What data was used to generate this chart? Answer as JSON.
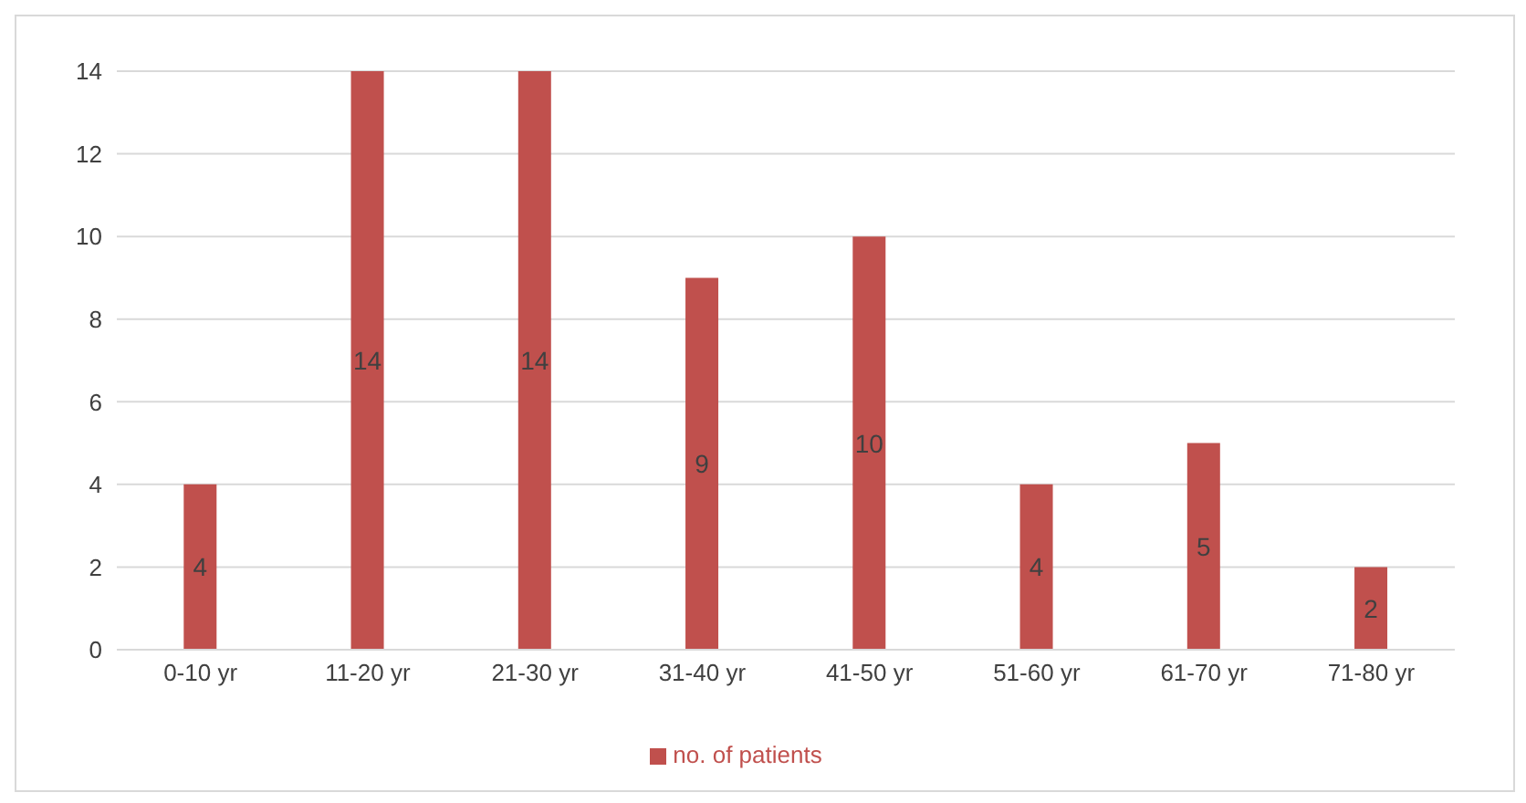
{
  "chart_data": {
    "type": "bar",
    "categories": [
      "0-10 yr",
      "11-20 yr",
      "21-30 yr",
      "31-40 yr",
      "41-50 yr",
      "51-60 yr",
      "61-70 yr",
      "71-80 yr"
    ],
    "series": [
      {
        "name": "no. of patients",
        "color": "#c0504d",
        "values": [
          4,
          14,
          14,
          9,
          10,
          4,
          5,
          2
        ]
      }
    ],
    "ylim": [
      0,
      14
    ],
    "yticks": [
      0,
      2,
      4,
      6,
      8,
      10,
      12,
      14
    ],
    "grid": "y",
    "legend": "bottom",
    "data_labels": true
  }
}
